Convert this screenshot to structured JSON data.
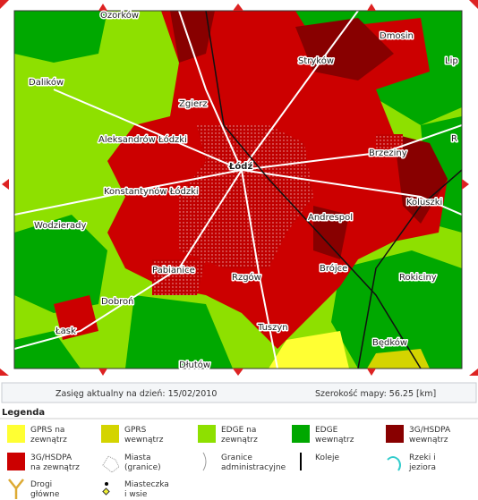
{
  "map": {
    "labels": [
      "Ozorków",
      "Dmosin",
      "Stryków",
      "Lip",
      "Dalików",
      "Zgierz",
      "Aleksandrów Łódzki",
      "Łódź",
      "Brzeziny",
      "R",
      "Konstantynów Łódzki",
      "Koluszki",
      "Andrespol",
      "Wodzierady",
      "Pabianice",
      "Rzgów",
      "Brójce",
      "Rokiciny",
      "Dobroń",
      "Łask",
      "Tuszyn",
      "Będków",
      "Dłutów"
    ]
  },
  "info": {
    "date_text": "Zasięg aktualny na dzień: 15/02/2010",
    "width_text": "Szerokość mapy: 56.25 [km]"
  },
  "legend": {
    "title": "Legenda",
    "items": [
      {
        "lines": [
          "GPRS na",
          "zewnątrz"
        ]
      },
      {
        "lines": [
          "GPRS",
          "wewnątrz"
        ]
      },
      {
        "lines": [
          "EDGE na",
          "zewnątrz"
        ]
      },
      {
        "lines": [
          "EDGE",
          "wewnątrz"
        ]
      },
      {
        "lines": [
          "3G/HSDPA",
          "wewnątrz"
        ]
      },
      {
        "lines": [
          "3G/HSDPA",
          "na zewnątrz"
        ]
      },
      {
        "lines": [
          "Miasta",
          "(granice)"
        ]
      },
      {
        "lines": [
          "Granice",
          "administracyjne"
        ]
      },
      {
        "lines": [
          "Koleje"
        ]
      },
      {
        "lines": [
          "Rzeki i",
          "jeziora"
        ]
      },
      {
        "lines": [
          "Drogi",
          "główne"
        ]
      },
      {
        "lines": [
          "Miasteczka",
          "i wsie"
        ]
      }
    ]
  }
}
